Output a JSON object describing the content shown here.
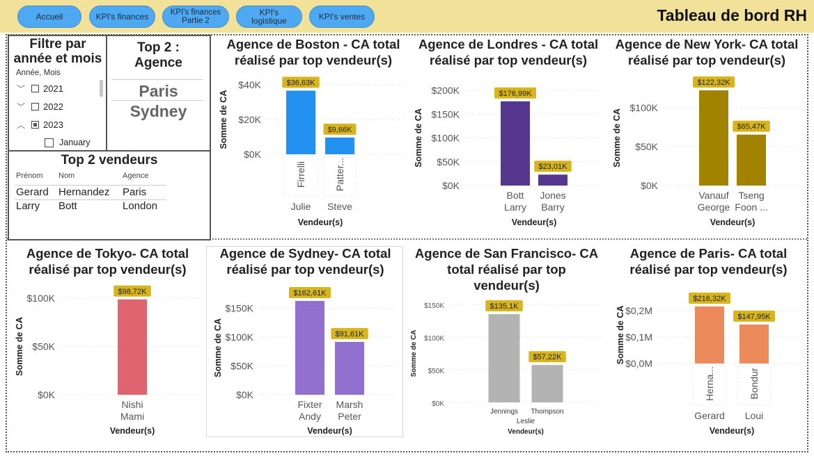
{
  "nav": {
    "buttons": [
      {
        "label": "Accueil"
      },
      {
        "label": "KPI's finances"
      },
      {
        "label_line1": "KPI's finances",
        "label_line2": "Partie 2"
      },
      {
        "label": "KPI's logistique"
      },
      {
        "label": "KPI's ventes"
      }
    ],
    "title": "Tableau de bord RH"
  },
  "slicer": {
    "title_line1": "Filtre par",
    "title_line2": "année et mois",
    "field_label": "Année, Mois",
    "items": [
      {
        "label": "2021",
        "expanded": false,
        "checked": "none"
      },
      {
        "label": "2022",
        "expanded": false,
        "checked": "none"
      },
      {
        "label": "2023",
        "expanded": true,
        "checked": "partial"
      },
      {
        "label": "January",
        "child": true,
        "checked": "none"
      }
    ]
  },
  "top_agencies": {
    "title_line1": "Top 2 :",
    "title_line2": "Agence",
    "items": [
      "Paris",
      "Sydney"
    ]
  },
  "top_sellers": {
    "title": "Top 2 vendeurs",
    "columns": [
      "Prénom",
      "Nom",
      "Agence"
    ],
    "rows": [
      [
        "Gerard",
        "Hernandez",
        "Paris"
      ],
      [
        "Larry",
        "Bott",
        "London"
      ]
    ]
  },
  "chart_data": [
    {
      "type": "bar",
      "title_lines": [
        "Agence de Boston - CA total",
        "réalisé par top vendeur(s)"
      ],
      "xlabel": "Vendeur(s)",
      "ylabel": "Somme de CA",
      "categories": [
        [
          "Firrelli",
          "Julie"
        ],
        [
          "Patter...",
          "Steve"
        ]
      ],
      "values": [
        36.63,
        9.66
      ],
      "data_labels": [
        "$36,63K",
        "$9,66K"
      ],
      "yticks": [
        0,
        20,
        40
      ],
      "ytick_labels": [
        "$0K",
        "$20K",
        "$40K"
      ],
      "ylim": [
        0,
        40
      ],
      "color": "#2291f2",
      "label_style": "rotated"
    },
    {
      "type": "bar",
      "title_lines": [
        "Agence de Londres - CA total",
        "réalisé par top vendeur(s)"
      ],
      "xlabel": "Vendeur(s)",
      "ylabel": "Somme de CA",
      "categories": [
        [
          "Bott",
          "Larry"
        ],
        [
          "Jones",
          "Barry"
        ]
      ],
      "values": [
        176.99,
        23.01
      ],
      "data_labels": [
        "$176,99K",
        "$23,01K"
      ],
      "yticks": [
        0,
        50,
        100,
        150,
        200
      ],
      "ytick_labels": [
        "$0K",
        "$50K",
        "$100K",
        "$150K",
        "$200K"
      ],
      "ylim": [
        0,
        200
      ],
      "color": "#553790",
      "label_style": "stacked"
    },
    {
      "type": "bar",
      "title_lines": [
        "Agence de New York- CA total",
        "réalisé par top vendeur(s)"
      ],
      "xlabel": "Vendeur(s)",
      "ylabel": "Somme de CA",
      "categories": [
        [
          "Vanauf",
          "George"
        ],
        [
          "Tseng",
          "Foon ..."
        ]
      ],
      "values": [
        122.32,
        65.47
      ],
      "data_labels": [
        "$122,32K",
        "$65,47K"
      ],
      "yticks": [
        0,
        50,
        100
      ],
      "ytick_labels": [
        "$0K",
        "$50K",
        "$100K"
      ],
      "ylim": [
        0,
        122.32
      ],
      "color": "#a18300",
      "label_style": "stacked"
    },
    {
      "type": "bar",
      "title_lines": [
        "Agence de Tokyo- CA total",
        "réalisé par top vendeur(s)"
      ],
      "xlabel": "Vendeur(s)",
      "ylabel": "Somme de CA",
      "categories": [
        [
          "Nishi",
          "Mami"
        ]
      ],
      "values": [
        98.72
      ],
      "data_labels": [
        "$98,72K"
      ],
      "yticks": [
        0,
        50,
        100
      ],
      "ytick_labels": [
        "$0K",
        "$50K",
        "$100K"
      ],
      "ylim": [
        0,
        100
      ],
      "color": "#e06470",
      "label_style": "stacked"
    },
    {
      "type": "bar",
      "title_lines": [
        "Agence de Sydney- CA total",
        "réalisé par top vendeur(s)"
      ],
      "xlabel": "Vendeur(s)",
      "ylabel": "Somme de CA",
      "categories": [
        [
          "Fixter",
          "Andy"
        ],
        [
          "Marsh",
          "Peter"
        ]
      ],
      "values": [
        162.61,
        91.61
      ],
      "data_labels": [
        "$162,61K",
        "$91,61K"
      ],
      "yticks": [
        0,
        50,
        100,
        150
      ],
      "ytick_labels": [
        "$0K",
        "$50K",
        "$100K",
        "$150K"
      ],
      "ylim": [
        0,
        162.61
      ],
      "color": "#9170cf",
      "label_style": "stacked"
    },
    {
      "type": "bar",
      "title_lines": [
        "Agence de San Francisco- CA",
        "total réalisé par top",
        "vendeur(s)"
      ],
      "xlabel": "Vendeur(s)",
      "ylabel": "Somme de CA",
      "categories": [
        [
          "Jennings",
          "Leslie"
        ],
        [
          "Thompson",
          ""
        ]
      ],
      "values": [
        135.1,
        57.22
      ],
      "data_labels": [
        "$135,1K",
        "$57,22K"
      ],
      "yticks": [
        0,
        50,
        100,
        150
      ],
      "ytick_labels": [
        "$0K",
        "$50K",
        "$100K",
        "$150K"
      ],
      "ylim": [
        0,
        150
      ],
      "color": "#b3b3b3",
      "label_style": "sf"
    },
    {
      "type": "bar",
      "title_lines": [
        "Agence de Paris- CA total",
        "réalisé par top vendeur(s)"
      ],
      "xlabel": "Vendeur(s)",
      "ylabel": "Somme de CA",
      "categories": [
        [
          "Herna...",
          "Gerard"
        ],
        [
          "Bondur",
          "Loui"
        ]
      ],
      "values": [
        216.32,
        147.95
      ],
      "data_labels": [
        "$216,32K",
        "$147,95K"
      ],
      "yticks": [
        0,
        100,
        200
      ],
      "ytick_labels": [
        "$0,0M",
        "$0,1M",
        "$0,2M"
      ],
      "ylim": [
        0,
        216.32
      ],
      "color": "#ec8a5b",
      "label_style": "rotated"
    }
  ]
}
